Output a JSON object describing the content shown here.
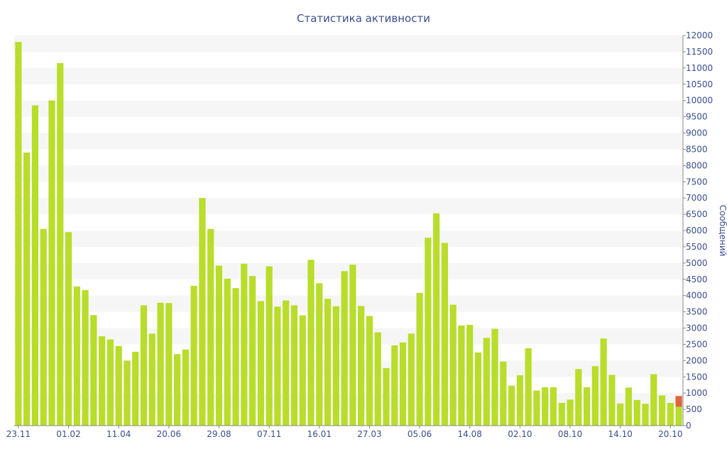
{
  "chart_data": {
    "type": "bar",
    "title": "Статистика активности",
    "ylabel": "Сообщений",
    "xlabel": "",
    "ylim": [
      0,
      12000
    ],
    "y_ticks": [
      0,
      500,
      1000,
      1500,
      2000,
      2500,
      3000,
      3500,
      4000,
      4500,
      5000,
      5500,
      6000,
      6500,
      7000,
      7500,
      8000,
      8500,
      9000,
      9500,
      10000,
      10500,
      11000,
      11500,
      12000
    ],
    "x_tick_labels": [
      "23.11",
      "01.02",
      "11.04",
      "20.06",
      "29.08",
      "07.11",
      "16.01",
      "27.03",
      "05.06",
      "14.08",
      "02.10",
      "08.10",
      "14.10",
      "20.10"
    ],
    "x_tick_label_bar_index": [
      0,
      6,
      12,
      18,
      24,
      30,
      36,
      42,
      48,
      54,
      60,
      66,
      72,
      78
    ],
    "grid": "horizontal bands",
    "y_axis_position": "right",
    "colors": {
      "bar": "#b8dd2a",
      "highlight": "#e0643c",
      "text": "#3a4e8c",
      "band": "#f6f6f6",
      "axis": "#888888"
    },
    "values": [
      11800,
      8400,
      9850,
      6050,
      10000,
      11150,
      5950,
      4280,
      4170,
      3400,
      2750,
      2650,
      2450,
      2000,
      2270,
      3700,
      2830,
      3780,
      3770,
      2200,
      2340,
      4300,
      7000,
      6050,
      4920,
      4520,
      4230,
      4980,
      4600,
      3830,
      4900,
      3660,
      3850,
      3700,
      3390,
      5100,
      4380,
      3900,
      3670,
      4750,
      4950,
      3680,
      3370,
      2870,
      1770,
      2470,
      2560,
      2830,
      4080,
      5780,
      6530,
      5620,
      3720,
      3080,
      3100,
      2250,
      2700,
      2980,
      1970,
      1230,
      1550,
      2380,
      1080,
      1180,
      1180,
      700,
      800,
      1740,
      1180,
      1830,
      2680,
      1560,
      680,
      1170,
      790,
      670,
      1580,
      930,
      700,
      580
    ],
    "highlight_last": {
      "value": 330
    }
  }
}
